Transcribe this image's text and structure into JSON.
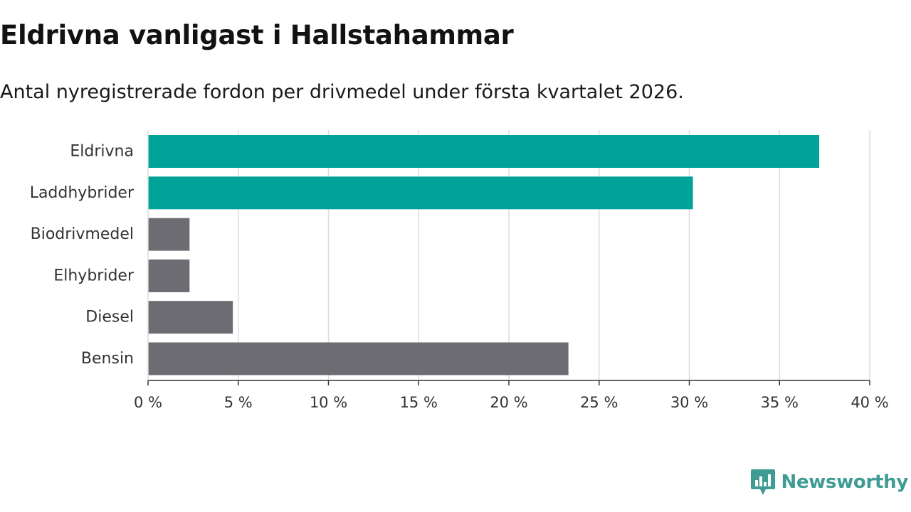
{
  "chart_data": {
    "type": "bar",
    "orientation": "horizontal",
    "title": "Eldrivna vanligast i Hallstahammar",
    "subtitle": "Antal nyregistrerade fordon per drivmedel under första kvartalet 2026.",
    "categories": [
      "Eldrivna",
      "Laddhybrider",
      "Biodrivmedel",
      "Elhybrider",
      "Diesel",
      "Bensin"
    ],
    "values": [
      37.2,
      30.2,
      2.3,
      2.3,
      4.7,
      23.3
    ],
    "colors": [
      "#00a398",
      "#00a398",
      "#6d6c72",
      "#6d6c72",
      "#6d6c72",
      "#6d6c72"
    ],
    "xlim": [
      0,
      40
    ],
    "xticks": [
      0,
      5,
      10,
      15,
      20,
      25,
      30,
      35,
      40
    ],
    "xtick_labels": [
      "0 %",
      "5 %",
      "10 %",
      "15 %",
      "20 %",
      "25 %",
      "30 %",
      "35 %",
      "40 %"
    ],
    "grid": true,
    "xlabel": "",
    "ylabel": ""
  },
  "brand": {
    "name": "Newsworthy",
    "icon": "newsworthy-chart-icon",
    "color": "#3f9c94"
  }
}
